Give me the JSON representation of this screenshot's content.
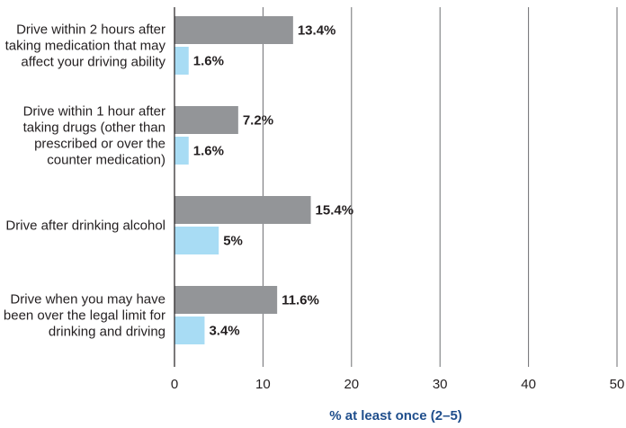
{
  "chart_data": {
    "type": "bar",
    "orientation": "horizontal",
    "categories": [
      [
        "Drive within 2 hours after",
        "taking medication that may",
        "affect your driving ability"
      ],
      [
        "Drive within 1 hour after",
        "taking drugs (other than",
        "prescribed or over the",
        "counter medication)"
      ],
      [
        "Drive after drinking alcohol"
      ],
      [
        "Drive when you may have",
        "been over the legal limit for",
        "drinking and driving"
      ]
    ],
    "series": [
      {
        "values": [
          13.4,
          7.2,
          15.4,
          11.6
        ],
        "labels": [
          "13.4%",
          "7.2%",
          "15.4%",
          "11.6%"
        ],
        "color": "#939598"
      },
      {
        "values": [
          1.6,
          1.6,
          5,
          3.4
        ],
        "labels": [
          "1.6%",
          "1.6%",
          "5%",
          "3.4%"
        ],
        "color": "#a8dcf4"
      }
    ],
    "xlim": [
      0,
      50
    ],
    "xticks": [
      "0",
      "10",
      "20",
      "30",
      "40",
      "50"
    ],
    "xlabel": "% at least once (2–5)",
    "grid": true,
    "legend": "none"
  }
}
